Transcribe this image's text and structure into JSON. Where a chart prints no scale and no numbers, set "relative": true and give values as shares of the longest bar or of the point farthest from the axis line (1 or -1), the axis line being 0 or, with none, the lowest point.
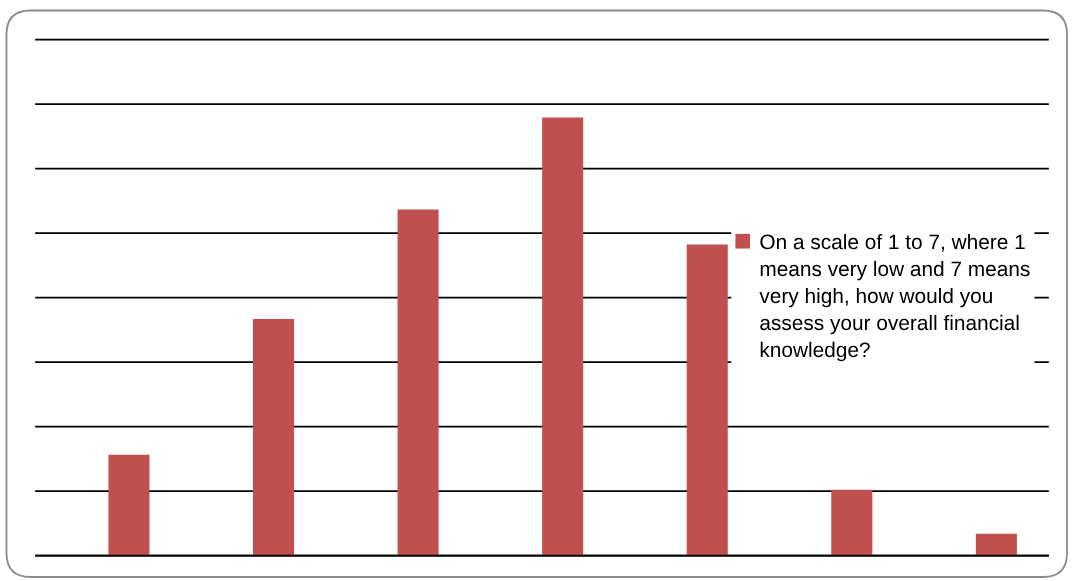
{
  "chart_data": {
    "type": "bar",
    "categories": [
      null,
      null,
      null,
      null,
      null,
      null,
      null
    ],
    "relative": true,
    "series": [
      {
        "name": "On a scale of 1 to 7, where 1 means very low and 7 means very high, how would you assess your overall financial knowledge?",
        "color": "#c0504d",
        "values": [
          0.23,
          0.54,
          0.79,
          1,
          0.71,
          0.15,
          0.05
        ]
      }
    ],
    "grid": "y",
    "legend": "right"
  }
}
